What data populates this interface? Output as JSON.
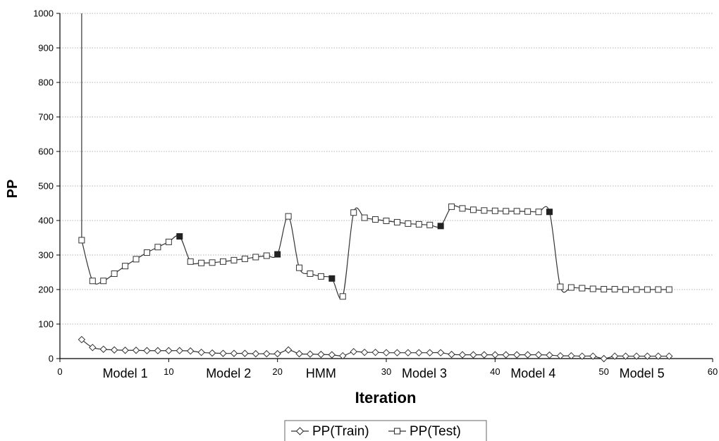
{
  "chart_data": {
    "type": "line",
    "xlabel": "Iteration",
    "ylabel": "PP",
    "xlim": [
      0,
      60
    ],
    "ylim": [
      0,
      1000
    ],
    "x_ticks": [
      0,
      10,
      20,
      30,
      40,
      50,
      60
    ],
    "y_ticks": [
      0,
      100,
      200,
      300,
      400,
      500,
      600,
      700,
      800,
      900,
      1000
    ],
    "grid": "horizontal dotted",
    "legend": {
      "placement": "bottom-center"
    },
    "annotations": [
      {
        "text": "Model 1",
        "x": 6
      },
      {
        "text": "Model 2",
        "x": 15.5
      },
      {
        "text": "HMM",
        "x": 24
      },
      {
        "text": "Model 3",
        "x": 33.5
      },
      {
        "text": "Model 4",
        "x": 43.5
      },
      {
        "text": "Model 5",
        "x": 53.5
      }
    ],
    "series": [
      {
        "name": "PP(Train)",
        "marker": "diamond",
        "color": "#333333",
        "x": [
          2,
          3,
          4,
          5,
          6,
          7,
          8,
          9,
          10,
          11,
          12,
          13,
          14,
          15,
          16,
          17,
          18,
          19,
          20,
          21,
          22,
          23,
          24,
          25,
          26,
          27,
          28,
          29,
          30,
          31,
          32,
          33,
          34,
          35,
          36,
          37,
          38,
          39,
          40,
          41,
          42,
          43,
          44,
          45,
          46,
          47,
          48,
          49,
          50,
          51,
          52,
          53,
          54,
          55,
          56
        ],
        "values": [
          55,
          32,
          27,
          25,
          24,
          24,
          23,
          23,
          23,
          23,
          22,
          18,
          16,
          15,
          15,
          15,
          14,
          14,
          14,
          25,
          14,
          13,
          12,
          11,
          8,
          20,
          18,
          18,
          17,
          17,
          17,
          17,
          17,
          17,
          12,
          11,
          11,
          11,
          11,
          11,
          11,
          11,
          11,
          10,
          8,
          8,
          7,
          7,
          0,
          7,
          7,
          7,
          7,
          7,
          7
        ]
      },
      {
        "name": "PP(Test)",
        "marker": "square",
        "color": "#333333",
        "x": [
          2,
          3,
          4,
          5,
          6,
          7,
          8,
          9,
          10,
          11,
          12,
          13,
          14,
          15,
          16,
          17,
          18,
          19,
          20,
          21,
          22,
          23,
          24,
          25,
          26,
          27,
          28,
          29,
          30,
          31,
          32,
          33,
          34,
          35,
          36,
          37,
          38,
          39,
          40,
          41,
          42,
          43,
          44,
          45,
          46,
          47,
          48,
          49,
          50,
          51,
          52,
          53,
          54,
          55,
          56
        ],
        "values": [
          343,
          225,
          225,
          246,
          268,
          288,
          307,
          323,
          338,
          354,
          281,
          277,
          278,
          281,
          285,
          289,
          294,
          298,
          302,
          412,
          263,
          246,
          238,
          232,
          180,
          423,
          408,
          403,
          399,
          395,
          391,
          389,
          387,
          384,
          440,
          435,
          431,
          429,
          428,
          427,
          427,
          426,
          425,
          425,
          208,
          206,
          204,
          202,
          201,
          201,
          200,
          200,
          200,
          200,
          200
        ],
        "filled_markers_at_x": [
          11,
          20,
          25,
          35,
          45
        ],
        "initial_value": 1000
      }
    ]
  }
}
